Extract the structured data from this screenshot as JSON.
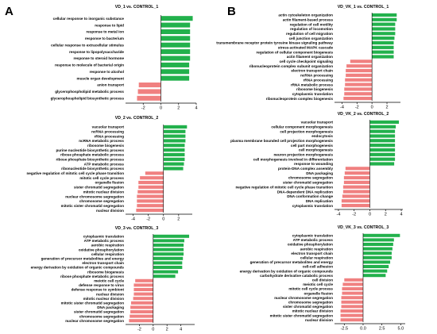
{
  "panel_labels": [
    "A",
    "B"
  ],
  "colors": {
    "up": "#22b14c",
    "down": "#f08080",
    "axis": "#000000"
  },
  "chart_data": [
    {
      "type": "bar",
      "orientation": "horizontal",
      "title": "VD_1 vs. CONTROL_1",
      "xlim": [
        -4,
        4
      ],
      "xticks": [
        -2,
        0,
        2,
        4
      ],
      "categories": [
        "cellular response to inorganic substance",
        "response to lipid",
        "response to metal ion",
        "response to bacterium",
        "cellular response to extracellular stimulus",
        "response to lipopolysaccharide",
        "response to steroid hormone",
        "response to molecule of bacterial origin",
        "response to alcohol",
        "muscle organ development",
        "anion transport",
        "glycerophospholipid metabolic process",
        "glycerophospholipid biosynthetic process"
      ],
      "values": [
        3.6,
        3.3,
        3.3,
        3.3,
        3.3,
        3.3,
        3.3,
        3.2,
        3.2,
        3.2,
        -2.5,
        -2.6,
        -2.7
      ]
    },
    {
      "type": "bar",
      "orientation": "horizontal",
      "title": "VD_2 vs. CONTROL_2",
      "xlim": [
        -5,
        3.8
      ],
      "xticks": [
        -4,
        -2,
        0,
        2
      ],
      "categories": [
        "vacuolar transport",
        "ncRNA processing",
        "rRNA processing",
        "ncRNA metabolic process",
        "ribosome biogenesis",
        "purine nucleotide biosynthetic process",
        "ribose phosphate metabolic process",
        "ribose phosphate biosynthetic process",
        "ATP metabolic process",
        "ribonucleotide biosynthetic process",
        "negative regulation of mitotic cell cycle phase transition",
        "mitotic cell cycle process",
        "organelle fission",
        "sister chromatid segregation",
        "mitotic nuclear division",
        "nuclear chromosome segregation",
        "chromosome segregation",
        "mitotic sister chromatid segregation",
        "nuclear division"
      ],
      "values": [
        3.1,
        2.9,
        2.9,
        2.9,
        2.8,
        2.8,
        2.8,
        2.8,
        2.7,
        2.6,
        -2.4,
        -3.1,
        -3.3,
        -3.3,
        -3.4,
        -3.5,
        -3.5,
        -3.5,
        -3.6
      ]
    },
    {
      "type": "bar",
      "orientation": "horizontal",
      "title": "VD_3 vs. CONTROL_3",
      "xlim": [
        -4,
        6
      ],
      "xticks": [
        -2,
        0,
        2,
        4
      ],
      "categories": [
        "cytoplasmic translation",
        "ATP metabolic process",
        "aerobic respiration",
        "oxidative phosphorylation",
        "cellular respiration",
        "generation of precursor metabolites and energy",
        "electron transport chain",
        "energy derivation by oxidation of organic compounds",
        "ribosome biogenesis",
        "ribose phosphate metabolic process",
        "meiotic cell cycle",
        "defense response to virus",
        "defense response to symbiont",
        "nuclear division",
        "mitotic nuclear division",
        "mitotic sister chromatid segregation",
        "DNA packaging",
        "sister chromatid segregation",
        "chromosome segregation",
        "nuclear chromosome segregation"
      ],
      "values": [
        5.2,
        4.5,
        4.4,
        4.4,
        4.4,
        4.3,
        4.2,
        4.2,
        3.6,
        3.2,
        -2.6,
        -2.8,
        -2.8,
        -2.8,
        -2.9,
        -3.2,
        -3.3,
        -3.3,
        -3.4,
        -3.5
      ]
    },
    {
      "type": "bar",
      "orientation": "horizontal",
      "title": "VD_VK_1 vs. CONTROL_1",
      "xlim": [
        -5,
        3.8
      ],
      "xticks": [
        -4,
        -2,
        0,
        2
      ],
      "categories": [
        "actin cytoskeleton organization",
        "actin filament-based process",
        "regulation of cell motility",
        "regulation of locomotion",
        "regulation of cell migration",
        "cell junction organization",
        "transmembrane receptor protein tyrosine kinase signaling pathway",
        "stress-activated MAPK cascade",
        "regulation of cellular component biogenesis",
        "actin filament organization",
        "cell cycle checkpoint signaling",
        "ribonucleoprotein complex subunit organization",
        "electron transport chain",
        "ncRNA processing",
        "rRNA processing",
        "rRNA metabolic process",
        "ribosome biogenesis",
        "cytoplasmic translation",
        "ribonucleoprotein complex biogenesis"
      ],
      "values": [
        3.3,
        3.3,
        3.1,
        3.1,
        3.1,
        3.0,
        2.9,
        2.9,
        2.9,
        2.9,
        -2.9,
        -3.4,
        -3.5,
        -3.5,
        -3.6,
        -3.6,
        -3.7,
        -3.7,
        -3.8
      ]
    },
    {
      "type": "bar",
      "orientation": "horizontal",
      "title": "VD_VK_2 vs. CONTROL_2",
      "xlim": [
        -4.5,
        4.2
      ],
      "xticks": [
        -4,
        -2,
        0,
        2,
        4
      ],
      "categories": [
        "vacuolar transport",
        "cellular component morphogenesis",
        "cell projection morphogenesis",
        "endocytosis",
        "plasma membrane bounded cell projection morphogenesis",
        "cell part morphogenesis",
        "cell morphogenesis",
        "neuron projection morphogenesis",
        "cell morphogenesis involved in differentiation",
        "response to wounding",
        "protein-DNA complex assembly",
        "DNA packaging",
        "chromosome segregation",
        "sister chromatid segregation",
        "negative regulation of mitotic cell cycle phase transition",
        "DNA-dependent DNA replication",
        "DNA conformation change",
        "DNA replication",
        "cytoplasmic translation"
      ],
      "values": [
        3.7,
        3.3,
        3.2,
        3.2,
        3.2,
        3.2,
        3.2,
        3.2,
        3.2,
        3.1,
        -3.1,
        -3.2,
        -3.3,
        -3.3,
        -3.4,
        -3.4,
        -3.5,
        -3.6,
        -3.6
      ]
    },
    {
      "type": "bar",
      "orientation": "horizontal",
      "title": "VD_VK_3 vs. CONTROL_3",
      "xlim": [
        -3.8,
        5.6
      ],
      "xticks": [
        -2.5,
        0.0,
        2.5,
        5.0
      ],
      "categories": [
        "cytoplasmic translation",
        "ATP metabolic process",
        "oxidative phosphorylation",
        "aerobic respiration",
        "electron transport chain",
        "cellular respiration",
        "generation of precursor metabolites and energy",
        "cell-cell adhesion",
        "energy derivation by oxidation of organic compounds",
        "carbohydrate derivative catabolic process",
        "cell division",
        "meiotic cell cycle",
        "mitotic cell cycle process",
        "organelle fission",
        "nuclear chromosome segregation",
        "chromosome segregation",
        "sister chromatid segregation",
        "mitotic nuclear division",
        "mitotic sister chromatid segregation",
        "nuclear division"
      ],
      "values": [
        4.9,
        4.1,
        4.0,
        3.9,
        3.8,
        3.8,
        3.6,
        3.4,
        3.2,
        3.0,
        -2.5,
        -2.7,
        -2.8,
        -2.8,
        -2.9,
        -2.9,
        -2.9,
        -3.0,
        -3.0,
        -3.0
      ]
    }
  ]
}
